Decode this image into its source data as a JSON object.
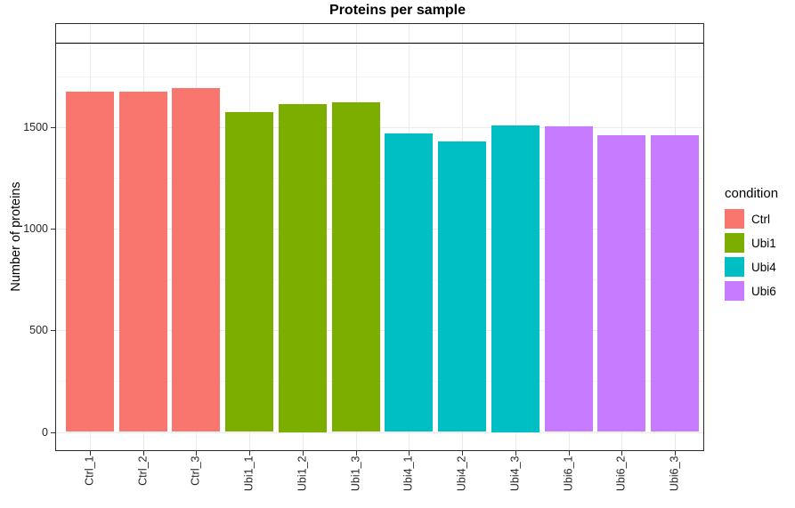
{
  "title": "Proteins per sample",
  "y_axis_title": "Number of proteins",
  "legend": {
    "title": "condition",
    "entries": [
      {
        "label": "Ctrl",
        "color": "#F8766D"
      },
      {
        "label": "Ubi1",
        "color": "#7CAE00"
      },
      {
        "label": "Ubi4",
        "color": "#00BFC4"
      },
      {
        "label": "Ubi6",
        "color": "#C77CFF"
      }
    ]
  },
  "chart_data": {
    "type": "bar",
    "title": "Proteins per sample",
    "xlabel": "",
    "ylabel": "Number of proteins",
    "categories": [
      "Ctrl_1",
      "Ctrl_2",
      "Ctrl_3",
      "Ubi1_1",
      "Ubi1_2",
      "Ubi1_3",
      "Ubi4_1",
      "Ubi4_2",
      "Ubi4_3",
      "Ubi6_1",
      "Ubi6_2",
      "Ubi6_3"
    ],
    "values": [
      1675,
      1675,
      1690,
      1575,
      1615,
      1620,
      1470,
      1430,
      1510,
      1505,
      1460,
      1460
    ],
    "groups": [
      "Ctrl",
      "Ctrl",
      "Ctrl",
      "Ubi1",
      "Ubi1",
      "Ubi1",
      "Ubi4",
      "Ubi4",
      "Ubi4",
      "Ubi6",
      "Ubi6",
      "Ubi6"
    ],
    "group_colors": {
      "Ctrl": "#F8766D",
      "Ubi1": "#7CAE00",
      "Ubi4": "#00BFC4",
      "Ubi6": "#C77CFF"
    },
    "yticks": [
      0,
      500,
      1000,
      1500
    ],
    "yticks_minor": [
      250,
      750,
      1250,
      1750
    ],
    "ylim": [
      0,
      2010
    ],
    "hline_y": 1915,
    "grid": "major+minor",
    "legend_position": "right",
    "legend_title": "condition",
    "x_label_rotation": 90
  }
}
